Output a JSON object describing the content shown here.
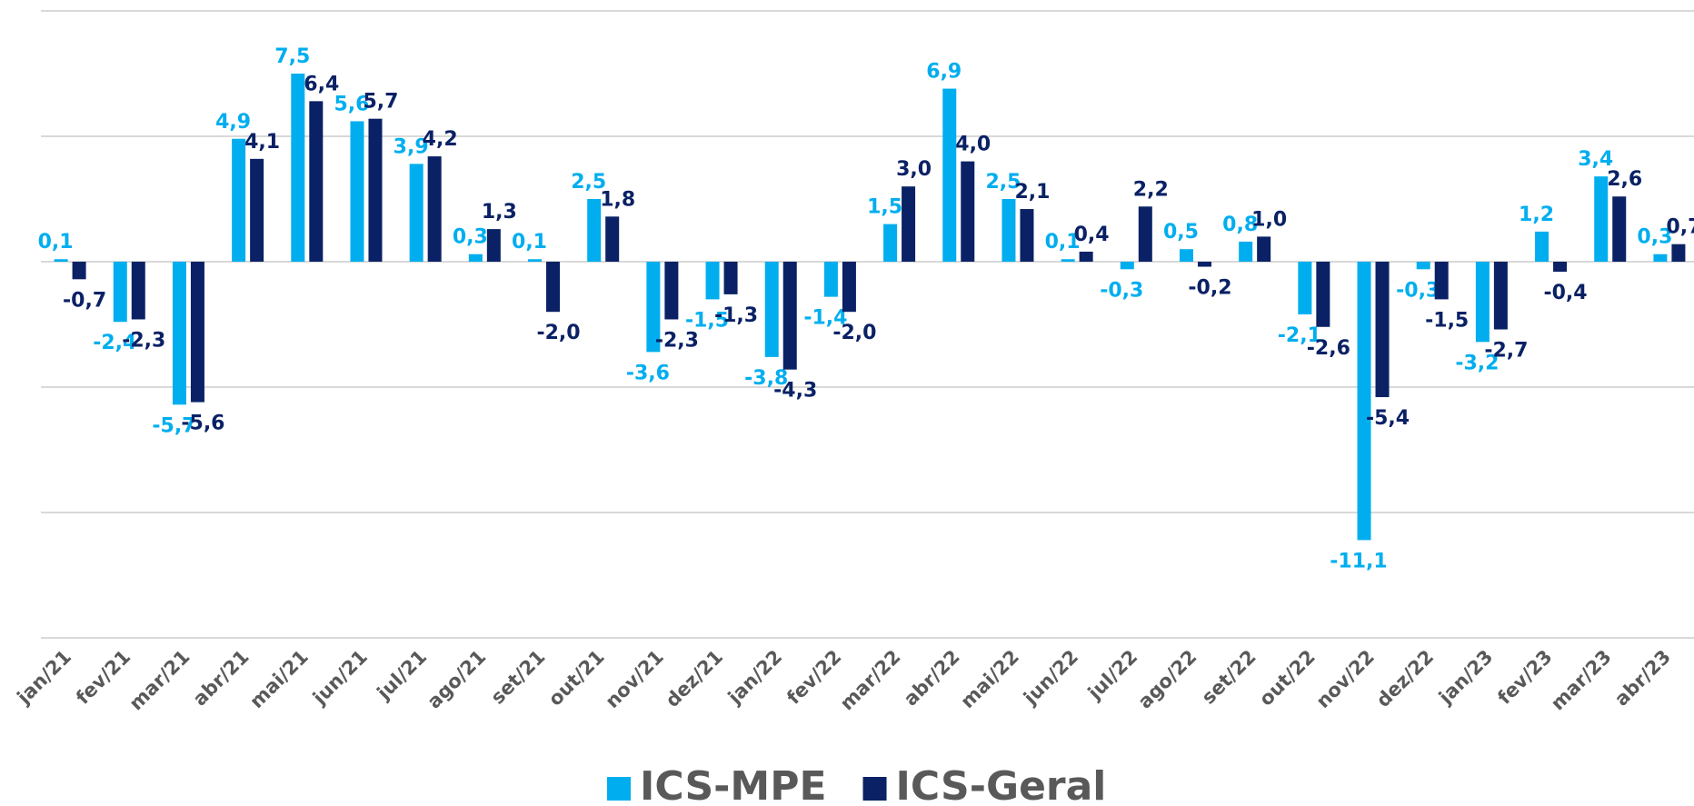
{
  "chart_data": {
    "type": "bar",
    "categories": [
      "jan/21",
      "fev/21",
      "mar/21",
      "abr/21",
      "mai/21",
      "jun/21",
      "jul/21",
      "ago/21",
      "set/21",
      "out/21",
      "nov/21",
      "dez/21",
      "jan/22",
      "fev/22",
      "mar/22",
      "abr/22",
      "mai/22",
      "jun/22",
      "jul/22",
      "ago/22",
      "set/22",
      "out/22",
      "nov/22",
      "dez/22",
      "jan/23",
      "fev/23",
      "mar/23",
      "abr/23"
    ],
    "series": [
      {
        "name": "ICS-MPE",
        "color": "#00aeef",
        "values": [
          0.1,
          -2.4,
          -5.7,
          4.9,
          7.5,
          5.6,
          3.9,
          0.3,
          0.1,
          2.5,
          -3.6,
          -1.5,
          -3.8,
          -1.4,
          1.5,
          6.9,
          2.5,
          0.1,
          -0.3,
          0.5,
          0.8,
          -2.1,
          -11.1,
          -0.3,
          -3.2,
          1.2,
          3.4,
          0.3
        ],
        "value_labels": [
          "0,1",
          "-2,4",
          "-5,7",
          "4,9",
          "7,5",
          "5,6",
          "3,9",
          "0,3",
          "0,1",
          "2,5",
          "-3,6",
          "-1,5",
          "-3,8",
          "-1,4",
          "1,5",
          "6,9",
          "2,5",
          "0,1",
          "-0,3",
          "0,5",
          "0,8",
          "-2,1",
          "-11,1",
          "-0,3",
          "-3,2",
          "1,2",
          "3,4",
          "0,3"
        ]
      },
      {
        "name": "ICS-Geral",
        "color": "#0a2165",
        "values": [
          -0.7,
          -2.3,
          -5.6,
          4.1,
          6.4,
          5.7,
          4.2,
          1.3,
          -2.0,
          1.8,
          -2.3,
          -1.3,
          -4.3,
          -2.0,
          3.0,
          4.0,
          2.1,
          0.4,
          2.2,
          -0.2,
          1.0,
          -2.6,
          -5.4,
          -1.5,
          -2.7,
          -0.4,
          2.6,
          0.7
        ],
        "value_labels": [
          "-0,7",
          "-2,3",
          "-5,6",
          "4,1",
          "6,4",
          "5,7",
          "4,2",
          "1,3",
          "-2,0",
          "1,8",
          "-2,3",
          "-1,3",
          "-4,3",
          "-2,0",
          "3,0",
          "4,0",
          "2,1",
          "0,4",
          "2,2",
          "-0,2",
          "1,0",
          "-2,6",
          "-5,4",
          "-1,5",
          "-2,7",
          "-0,4",
          "2,6",
          "0,7"
        ]
      }
    ],
    "ylim": [
      -15,
      10
    ],
    "yticks": [
      -15,
      -10,
      -5,
      0,
      5,
      10
    ],
    "grid": true
  }
}
